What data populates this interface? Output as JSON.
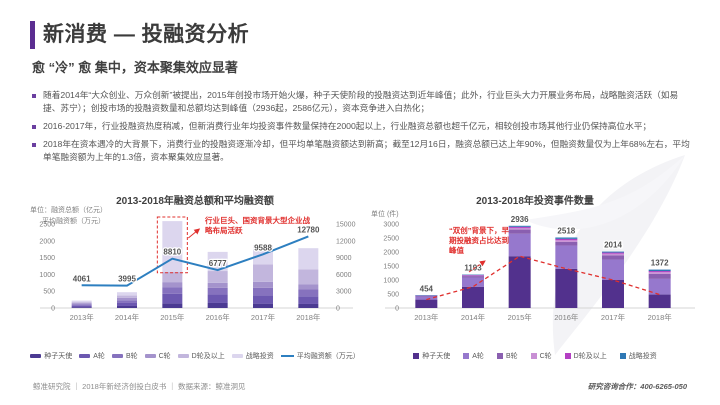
{
  "header": {
    "title": "新消费 — 投融资分析",
    "subtitle": "愈 “冷” 愈 集中，资本聚集效应显著"
  },
  "bullets": [
    "随着2014年“大众创业、万众创新”被提出，2015年创投市场开始火爆，种子天使阶段的投融资达到近年峰值；此外，行业巨头大力开展业务布局，战略融资活跃（如易捷、苏宁）；创投市场的投融资数量和总额均达到峰值（2936起，2586亿元），资本竞争进入白热化；",
    "2016-2017年，行业投融资热度稍减，但新消费行业年均投资事件数量保持在2000起以上，行业融资总额也超千亿元，相较创投市场其他行业仍保持高位水平；",
    "2018年在资本遇冷的大背景下，消费行业的投融资逐渐冷却，但平均单笔融资额达到新高；截至12月16日，融资总额已达上年90%，但融资数量仅为上年68%左右，平均单笔融资额为上年的1.3倍，资本聚集效应显著。"
  ],
  "chart_data": [
    {
      "type": "bar",
      "title": "2013-2018年融资总额和平均融资额",
      "unit_line1": "单位：融资总额（亿元）",
      "unit_line2": "平均融资额（万元）",
      "categories": [
        "2013年",
        "2014年",
        "2015年",
        "2016年",
        "2017年",
        "2018年"
      ],
      "series": [
        {
          "name": "种子天使",
          "values": [
            25,
            60,
            140,
            150,
            130,
            120
          ]
        },
        {
          "name": "A轮",
          "values": [
            45,
            90,
            280,
            250,
            250,
            230
          ]
        },
        {
          "name": "B轮",
          "values": [
            40,
            80,
            200,
            200,
            220,
            200
          ]
        },
        {
          "name": "C轮",
          "values": [
            35,
            70,
            150,
            150,
            180,
            150
          ]
        },
        {
          "name": "D轮及以上",
          "values": [
            30,
            70,
            310,
            350,
            520,
            450
          ]
        },
        {
          "name": "战略投资",
          "values": [
            45,
            100,
            1506,
            570,
            570,
            630
          ]
        }
      ],
      "bar_totals": [
        220,
        470,
        2586,
        1670,
        1870,
        1780
      ],
      "line_series": {
        "name": "平均融资额（万元）",
        "values": [
          4061,
          3995,
          8810,
          6777,
          9588,
          12780
        ]
      },
      "ylim_left": [
        0,
        2500
      ],
      "ytick_step_left": 500,
      "ylim_right": [
        0,
        15000
      ],
      "ytick_step_right": 3000,
      "annotation": "行业巨头、国资背景大型企业战略布局活跃",
      "annotation_target": "2015年",
      "palette": [
        "#4b3a92",
        "#6c58b0",
        "#8672be",
        "#a493cc",
        "#c2b6dd",
        "#dcd6ee"
      ],
      "line_color": "#2d7fc0",
      "annotation_color": "#e0302e",
      "legend_position": "bottom"
    },
    {
      "type": "bar",
      "title": "2013-2018年投资事件数量",
      "unit": "单位 (件)",
      "categories": [
        "2013年",
        "2014年",
        "2015年",
        "2016年",
        "2017年",
        "2018年"
      ],
      "series": [
        {
          "name": "种子天使",
          "values": [
            300,
            760,
            1850,
            1400,
            1000,
            480
          ]
        },
        {
          "name": "A轮",
          "values": [
            110,
            330,
            800,
            830,
            730,
            560
          ]
        },
        {
          "name": "B轮",
          "values": [
            24,
            50,
            150,
            130,
            150,
            180
          ]
        },
        {
          "name": "C轮",
          "values": [
            10,
            25,
            60,
            60,
            60,
            60
          ]
        },
        {
          "name": "D轮及以上",
          "values": [
            5,
            15,
            40,
            50,
            40,
            40
          ]
        },
        {
          "name": "战略投资",
          "values": [
            5,
            13,
            36,
            48,
            34,
            52
          ]
        }
      ],
      "totals": [
        454,
        1193,
        2936,
        2518,
        2014,
        1372
      ],
      "trend_line": {
        "name": "种子天使趋势",
        "values": [
          300,
          760,
          1850,
          1400,
          1000,
          480
        ],
        "style": "dashed"
      },
      "ylim": [
        0,
        3000
      ],
      "ytick_step": 500,
      "annotation": "“双创”背景下，早期投融资占比达到峰值",
      "annotation_target": "2015年",
      "palette": [
        "#52318d",
        "#9678cd",
        "#8a5fb0",
        "#c88fd4",
        "#b43fc3",
        "#2e78b5"
      ],
      "annotation_color": "#e0302e",
      "legend_position": "bottom"
    }
  ],
  "footer": {
    "left": "鲸准研究院 ｜ 2018年新经济创投白皮书 ｜ 数据来源：鲸准洞见",
    "right": "研究咨询合作：400-6265-050"
  },
  "colors": {
    "accent_purple": "#5b2d91",
    "bullet_purple": "#6b3fa0",
    "title_text": "#3b3b3b",
    "body_text": "#555555",
    "axis_text": "#7f7f7f",
    "annotation_red": "#e0302e",
    "line_blue": "#2d7fc0"
  }
}
